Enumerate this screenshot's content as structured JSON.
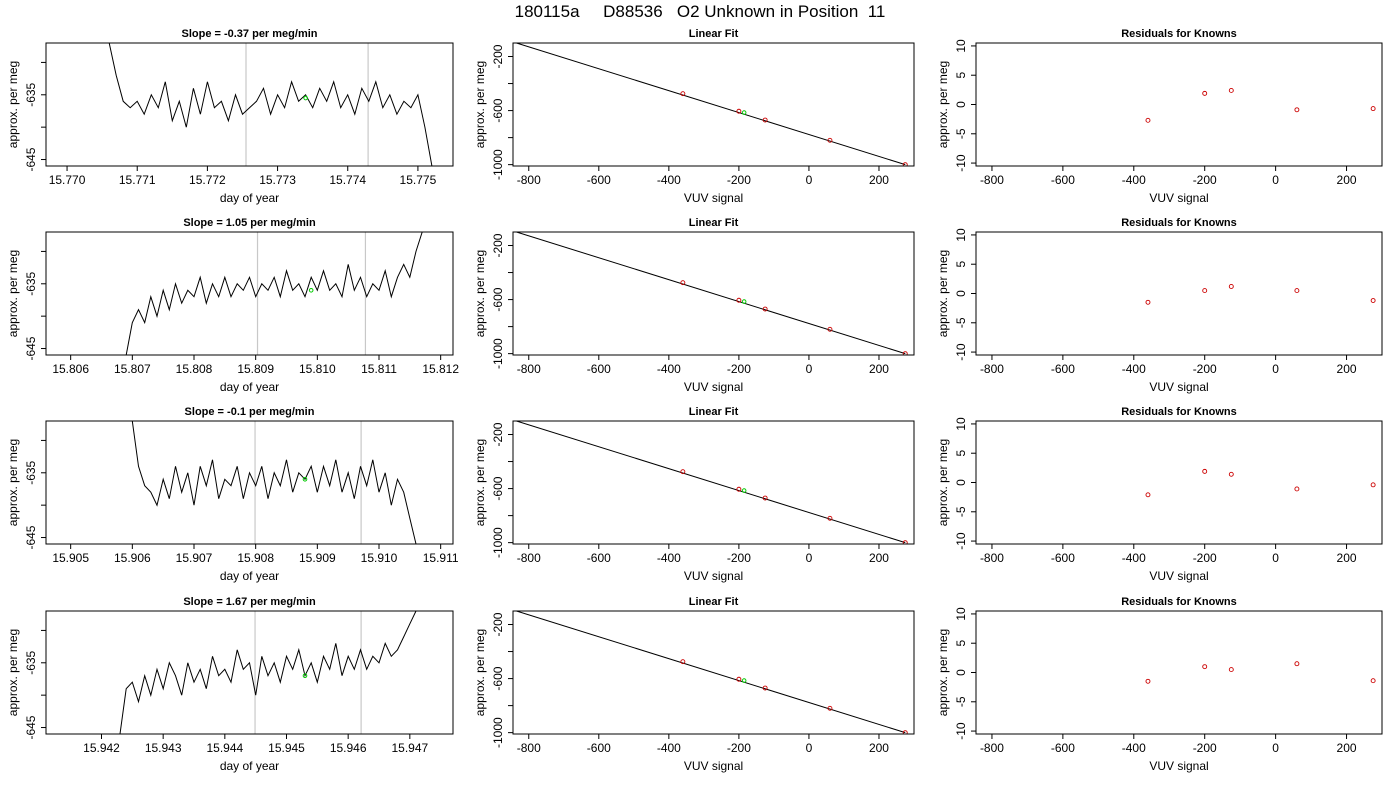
{
  "page_title": "180115a     D88536   O2 Unknown in Position  11",
  "colors": {
    "trace": "#000000",
    "marker_fit": "#00cc00",
    "points": "#cc0000",
    "vlines": "#c8c8c8",
    "frame": "#000000"
  },
  "chart_data": [
    {
      "type": "line",
      "panel": "time-series",
      "row": 1,
      "title": "Slope =  -0.37  per meg/min",
      "xlabel": "day of year",
      "ylabel": "approx. per meg",
      "xlim": [
        15.7697,
        15.7755
      ],
      "ylim": [
        -646,
        -627
      ],
      "xticks": [
        "15.770",
        "15.771",
        "15.772",
        "15.773",
        "15.774",
        "15.775"
      ],
      "yticks": [
        "-635",
        "-645"
      ],
      "vlines": [
        15.77255,
        15.77429
      ],
      "marker": [
        15.7734,
        -635.5
      ],
      "series": [
        {
          "x": [
            15.7706,
            15.7707,
            15.7708,
            15.7709,
            15.771,
            15.7711,
            15.7712,
            15.7713,
            15.7714,
            15.7715,
            15.7716,
            15.7717,
            15.7718,
            15.7719,
            15.772,
            15.7721,
            15.7722,
            15.7723,
            15.7724,
            15.7725,
            15.7726,
            15.7727,
            15.7728,
            15.7729,
            15.773,
            15.7731,
            15.7732,
            15.7733,
            15.7734,
            15.7735,
            15.7736,
            15.7737,
            15.7738,
            15.7739,
            15.774,
            15.7741,
            15.7742,
            15.7743,
            15.7744,
            15.7745,
            15.7746,
            15.7747,
            15.7748,
            15.7749,
            15.775,
            15.7751,
            15.7752
          ],
          "y": [
            -627,
            -632,
            -636,
            -637,
            -636,
            -638,
            -635,
            -637,
            -633,
            -639,
            -636,
            -640,
            -634,
            -638,
            -633,
            -637,
            -636,
            -639,
            -635,
            -638,
            -637,
            -636,
            -634,
            -638,
            -635,
            -637,
            -633,
            -636,
            -635,
            -637,
            -634,
            -636,
            -633,
            -637,
            -635,
            -638,
            -634,
            -636,
            -633,
            -637,
            -635,
            -638,
            -636,
            -637,
            -635,
            -640,
            -646
          ]
        }
      ]
    },
    {
      "type": "scatter",
      "panel": "linear-fit",
      "row": 1,
      "title": "Linear Fit",
      "xlabel": "VUV signal",
      "ylabel": "approx. per meg",
      "xlim": [
        -845,
        300
      ],
      "ylim": [
        -1010,
        -100
      ],
      "xticks": [
        "-800",
        "-600",
        "-400",
        "-200",
        "0",
        "200"
      ],
      "yticks": [
        "-200",
        "-600",
        "-1000"
      ],
      "line": [
        [
          -835,
          -100
        ],
        [
          275,
          -1000
        ]
      ],
      "points": {
        "x": [
          -360,
          -200,
          -125,
          60,
          275
        ],
        "y": [
          -475,
          -605,
          -670,
          -820,
          -1000
        ]
      },
      "marker": [
        -185,
        -615
      ]
    },
    {
      "type": "scatter",
      "panel": "residuals",
      "row": 1,
      "title": "Residuals for Knowns",
      "xlabel": "VUV signal",
      "ylabel": "approx. per meg",
      "xlim": [
        -845,
        300
      ],
      "ylim": [
        -10.5,
        10.5
      ],
      "xticks": [
        "-800",
        "-600",
        "-400",
        "-200",
        "0",
        "200"
      ],
      "yticks": [
        "10",
        "5",
        "0",
        "-5",
        "-10"
      ],
      "points": {
        "x": [
          -360,
          -200,
          -125,
          60,
          275
        ],
        "y": [
          -2.7,
          1.9,
          2.4,
          -0.9,
          -0.7
        ]
      }
    },
    {
      "type": "line",
      "panel": "time-series",
      "row": 2,
      "title": "Slope =  1.05  per meg/min",
      "xlabel": "day of year",
      "ylabel": "approx. per meg",
      "xlim": [
        15.8056,
        15.8122
      ],
      "ylim": [
        -646,
        -627
      ],
      "xticks": [
        "15.806",
        "15.807",
        "15.808",
        "15.809",
        "15.810",
        "15.811",
        "15.812"
      ],
      "yticks": [
        "-635",
        "-645"
      ],
      "vlines": [
        15.80903,
        15.81078
      ],
      "marker": [
        15.8099,
        -636
      ],
      "series": [
        {
          "x": [
            15.8069,
            15.807,
            15.8071,
            15.8072,
            15.8073,
            15.8074,
            15.8075,
            15.8076,
            15.8077,
            15.8078,
            15.8079,
            15.808,
            15.8081,
            15.8082,
            15.8083,
            15.8084,
            15.8085,
            15.8086,
            15.8087,
            15.8088,
            15.8089,
            15.809,
            15.8091,
            15.8092,
            15.8093,
            15.8094,
            15.8095,
            15.8096,
            15.8097,
            15.8098,
            15.8099,
            15.81,
            15.8101,
            15.8102,
            15.8103,
            15.8104,
            15.8105,
            15.8106,
            15.8107,
            15.8108,
            15.8109,
            15.811,
            15.8111,
            15.8112,
            15.8113,
            15.8114,
            15.8115,
            15.8116,
            15.8117
          ],
          "y": [
            -646,
            -641,
            -639,
            -641,
            -637,
            -640,
            -636,
            -639,
            -635,
            -638,
            -636,
            -637,
            -634,
            -638,
            -635,
            -637,
            -634,
            -637,
            -635,
            -636,
            -634,
            -637,
            -635,
            -636,
            -634,
            -637,
            -633,
            -636,
            -635,
            -637,
            -634,
            -636,
            -633,
            -636,
            -635,
            -637,
            -632,
            -636,
            -634,
            -637,
            -635,
            -636,
            -633,
            -637,
            -634,
            -632,
            -634,
            -630,
            -627
          ]
        }
      ]
    },
    {
      "type": "scatter",
      "panel": "linear-fit",
      "row": 2,
      "title": "Linear Fit",
      "xlabel": "VUV signal",
      "ylabel": "approx. per meg",
      "xlim": [
        -845,
        300
      ],
      "ylim": [
        -1010,
        -100
      ],
      "xticks": [
        "-800",
        "-600",
        "-400",
        "-200",
        "0",
        "200"
      ],
      "yticks": [
        "-200",
        "-600",
        "-1000"
      ],
      "line": [
        [
          -835,
          -100
        ],
        [
          275,
          -1000
        ]
      ],
      "points": {
        "x": [
          -360,
          -200,
          -125,
          60,
          275
        ],
        "y": [
          -475,
          -605,
          -670,
          -820,
          -1000
        ]
      },
      "marker": [
        -185,
        -615
      ]
    },
    {
      "type": "scatter",
      "panel": "residuals",
      "row": 2,
      "title": "Residuals for Knowns",
      "xlabel": "VUV signal",
      "ylabel": "approx. per meg",
      "xlim": [
        -845,
        300
      ],
      "ylim": [
        -10.5,
        10.5
      ],
      "xticks": [
        "-800",
        "-600",
        "-400",
        "-200",
        "0",
        "200"
      ],
      "yticks": [
        "10",
        "5",
        "0",
        "-5",
        "-10"
      ],
      "points": {
        "x": [
          -360,
          -200,
          -125,
          60,
          275
        ],
        "y": [
          -1.5,
          0.5,
          1.2,
          0.5,
          -1.2
        ]
      }
    },
    {
      "type": "line",
      "panel": "time-series",
      "row": 3,
      "title": "Slope =  -0.1  per meg/min",
      "xlabel": "day of year",
      "ylabel": "approx. per meg",
      "xlim": [
        15.9046,
        15.9112
      ],
      "ylim": [
        -646,
        -627
      ],
      "xticks": [
        "15.905",
        "15.906",
        "15.907",
        "15.908",
        "15.909",
        "15.910",
        "15.911"
      ],
      "yticks": [
        "-635",
        "-645"
      ],
      "vlines": [
        15.90799,
        15.90971
      ],
      "marker": [
        15.9088,
        -636
      ],
      "series": [
        {
          "x": [
            15.906,
            15.9061,
            15.9062,
            15.9063,
            15.9064,
            15.9065,
            15.9066,
            15.9067,
            15.9068,
            15.9069,
            15.907,
            15.9071,
            15.9072,
            15.9073,
            15.9074,
            15.9075,
            15.9076,
            15.9077,
            15.9078,
            15.9079,
            15.908,
            15.9081,
            15.9082,
            15.9083,
            15.9084,
            15.9085,
            15.9086,
            15.9087,
            15.9088,
            15.9089,
            15.909,
            15.9091,
            15.9092,
            15.9093,
            15.9094,
            15.9095,
            15.9096,
            15.9097,
            15.9098,
            15.9099,
            15.91,
            15.9101,
            15.9102,
            15.9103,
            15.9104,
            15.9105,
            15.9106
          ],
          "y": [
            -627,
            -634,
            -637,
            -638,
            -640,
            -636,
            -639,
            -634,
            -638,
            -635,
            -640,
            -634,
            -637,
            -633,
            -639,
            -636,
            -637,
            -634,
            -639,
            -635,
            -637,
            -634,
            -639,
            -635,
            -637,
            -633,
            -638,
            -635,
            -636,
            -634,
            -638,
            -634,
            -637,
            -633,
            -638,
            -635,
            -639,
            -634,
            -637,
            -633,
            -638,
            -635,
            -640,
            -636,
            -638,
            -642,
            -646
          ]
        }
      ]
    },
    {
      "type": "scatter",
      "panel": "linear-fit",
      "row": 3,
      "title": "Linear Fit",
      "xlabel": "VUV signal",
      "ylabel": "approx. per meg",
      "xlim": [
        -845,
        300
      ],
      "ylim": [
        -1010,
        -100
      ],
      "xticks": [
        "-800",
        "-600",
        "-400",
        "-200",
        "0",
        "200"
      ],
      "yticks": [
        "-200",
        "-600",
        "-1000"
      ],
      "line": [
        [
          -835,
          -100
        ],
        [
          275,
          -1000
        ]
      ],
      "points": {
        "x": [
          -360,
          -200,
          -125,
          60,
          275
        ],
        "y": [
          -475,
          -605,
          -670,
          -820,
          -1000
        ]
      },
      "marker": [
        -185,
        -615
      ]
    },
    {
      "type": "scatter",
      "panel": "residuals",
      "row": 3,
      "title": "Residuals for Knowns",
      "xlabel": "VUV signal",
      "ylabel": "approx. per meg",
      "xlim": [
        -845,
        300
      ],
      "ylim": [
        -10.5,
        10.5
      ],
      "xticks": [
        "-800",
        "-600",
        "-400",
        "-200",
        "0",
        "200"
      ],
      "yticks": [
        "10",
        "5",
        "0",
        "-5",
        "-10"
      ],
      "points": {
        "x": [
          -360,
          -200,
          -125,
          60,
          275
        ],
        "y": [
          -2.1,
          1.9,
          1.4,
          -1.1,
          -0.4
        ]
      }
    },
    {
      "type": "line",
      "panel": "time-series",
      "row": 4,
      "title": "Slope =  1.67  per meg/min",
      "xlabel": "day of year",
      "ylabel": "approx. per meg",
      "xlim": [
        15.9411,
        15.9477
      ],
      "ylim": [
        -646,
        -627
      ],
      "xticks": [
        "15.942",
        "15.943",
        "15.944",
        "15.945",
        "15.946",
        "15.947"
      ],
      "yticks": [
        "-635",
        "-645"
      ],
      "vlines": [
        15.94449,
        15.94621
      ],
      "marker": [
        15.9453,
        -637
      ],
      "series": [
        {
          "x": [
            15.9423,
            15.9424,
            15.9425,
            15.9426,
            15.9427,
            15.9428,
            15.9429,
            15.943,
            15.9431,
            15.9432,
            15.9433,
            15.9434,
            15.9435,
            15.9436,
            15.9437,
            15.9438,
            15.9439,
            15.944,
            15.9441,
            15.9442,
            15.9443,
            15.9444,
            15.9445,
            15.9446,
            15.9447,
            15.9448,
            15.9449,
            15.945,
            15.9451,
            15.9452,
            15.9453,
            15.9454,
            15.9455,
            15.9456,
            15.9457,
            15.9458,
            15.9459,
            15.946,
            15.9461,
            15.9462,
            15.9463,
            15.9464,
            15.9465,
            15.9466,
            15.9467,
            15.9468,
            15.9469,
            15.947,
            15.9471
          ],
          "y": [
            -646,
            -639,
            -638,
            -641,
            -637,
            -640,
            -636,
            -639,
            -635,
            -637,
            -640,
            -635,
            -638,
            -636,
            -639,
            -634,
            -637,
            -636,
            -638,
            -633,
            -636,
            -635,
            -640,
            -634,
            -637,
            -635,
            -638,
            -634,
            -636,
            -633,
            -637,
            -635,
            -638,
            -634,
            -636,
            -632,
            -637,
            -634,
            -636,
            -633,
            -636,
            -634,
            -635,
            -632,
            -634,
            -633,
            -631,
            -629,
            -627
          ]
        }
      ]
    },
    {
      "type": "scatter",
      "panel": "linear-fit",
      "row": 4,
      "title": "Linear Fit",
      "xlabel": "VUV signal",
      "ylabel": "approx. per meg",
      "xlim": [
        -845,
        300
      ],
      "ylim": [
        -1010,
        -100
      ],
      "xticks": [
        "-800",
        "-600",
        "-400",
        "-200",
        "0",
        "200"
      ],
      "yticks": [
        "-200",
        "-600",
        "-1000"
      ],
      "line": [
        [
          -835,
          -100
        ],
        [
          275,
          -1000
        ]
      ],
      "points": {
        "x": [
          -360,
          -200,
          -125,
          60,
          275
        ],
        "y": [
          -475,
          -605,
          -670,
          -820,
          -1000
        ]
      },
      "marker": [
        -185,
        -615
      ]
    },
    {
      "type": "scatter",
      "panel": "residuals",
      "row": 4,
      "title": "Residuals for Knowns",
      "xlabel": "VUV signal",
      "ylabel": "approx. per meg",
      "xlim": [
        -845,
        300
      ],
      "ylim": [
        -10.5,
        10.5
      ],
      "xticks": [
        "-800",
        "-600",
        "-400",
        "-200",
        "0",
        "200"
      ],
      "yticks": [
        "10",
        "5",
        "0",
        "-5",
        "-10"
      ],
      "points": {
        "x": [
          -360,
          -200,
          -125,
          60,
          275
        ],
        "y": [
          -1.5,
          1.0,
          0.5,
          1.5,
          -1.4
        ]
      }
    }
  ]
}
